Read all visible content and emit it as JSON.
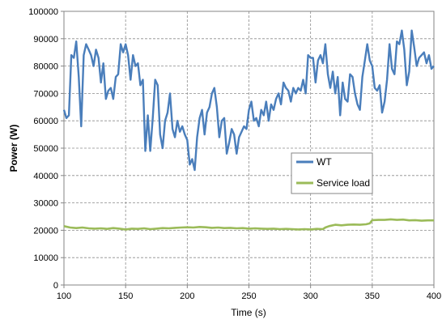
{
  "chart_data": {
    "type": "line",
    "title": "",
    "xlabel": "Time (s)",
    "ylabel": "Power (W)",
    "xlim": [
      100,
      400
    ],
    "ylim": [
      0,
      100000
    ],
    "x_ticks": [
      100,
      150,
      200,
      250,
      300,
      350,
      400
    ],
    "y_ticks": [
      0,
      10000,
      20000,
      30000,
      40000,
      50000,
      60000,
      70000,
      80000,
      90000,
      100000
    ],
    "grid": true,
    "grid_style": "dashed",
    "legend_position": "center-right",
    "series": [
      {
        "name": "WT",
        "color": "#4a7ebb",
        "x": [
          100,
          102,
          104,
          106,
          108,
          110,
          112,
          114,
          116,
          118,
          120,
          122,
          124,
          126,
          128,
          130,
          132,
          134,
          136,
          138,
          140,
          142,
          144,
          146,
          148,
          150,
          152,
          154,
          156,
          158,
          160,
          162,
          164,
          166,
          168,
          170,
          172,
          174,
          176,
          178,
          180,
          182,
          184,
          186,
          188,
          190,
          192,
          194,
          196,
          198,
          200,
          202,
          204,
          206,
          208,
          210,
          212,
          214,
          216,
          218,
          220,
          222,
          224,
          226,
          228,
          230,
          232,
          234,
          236,
          238,
          240,
          242,
          244,
          246,
          248,
          250,
          252,
          254,
          256,
          258,
          260,
          262,
          264,
          266,
          268,
          270,
          272,
          274,
          276,
          278,
          280,
          282,
          284,
          286,
          288,
          290,
          292,
          294,
          296,
          298,
          300,
          302,
          304,
          306,
          308,
          310,
          312,
          314,
          316,
          318,
          320,
          322,
          324,
          326,
          328,
          330,
          332,
          334,
          336,
          338,
          340,
          342,
          344,
          346,
          348,
          350,
          352,
          354,
          356,
          358,
          360,
          362,
          364,
          366,
          368,
          370,
          372,
          374,
          376,
          378,
          380,
          382,
          384,
          386,
          388,
          390,
          392,
          394,
          396,
          398,
          400
        ],
        "values": [
          64000,
          61000,
          62000,
          84000,
          83000,
          89000,
          76000,
          58000,
          84000,
          88000,
          86000,
          84000,
          80000,
          86000,
          83000,
          74000,
          81000,
          68000,
          71000,
          72000,
          68000,
          76000,
          77000,
          88000,
          85000,
          88000,
          84000,
          75000,
          84000,
          80000,
          81000,
          73000,
          75000,
          49000,
          62000,
          49000,
          61000,
          75000,
          73000,
          55000,
          50000,
          60000,
          63000,
          70000,
          57000,
          54000,
          60000,
          56000,
          58000,
          55000,
          53000,
          44000,
          46000,
          42000,
          54000,
          61000,
          64000,
          55000,
          63000,
          65000,
          70000,
          72000,
          65000,
          54000,
          60000,
          61000,
          48000,
          52000,
          57000,
          55000,
          48000,
          54000,
          56000,
          58000,
          57000,
          64000,
          67000,
          60000,
          61000,
          58000,
          64000,
          62000,
          67000,
          60000,
          66000,
          64000,
          68000,
          70000,
          66000,
          74000,
          72000,
          71000,
          67000,
          72000,
          70000,
          72000,
          71000,
          75000,
          70000,
          84000,
          83000,
          83000,
          74000,
          82000,
          84000,
          81000,
          88000,
          77000,
          72000,
          78000,
          70000,
          76000,
          62000,
          74000,
          68000,
          67000,
          77000,
          76000,
          70000,
          66000,
          64000,
          76000,
          82000,
          88000,
          82000,
          80000,
          72000,
          71000,
          73000,
          63000,
          67000,
          75000,
          88000,
          79000,
          77000,
          89000,
          88000,
          93000,
          86000,
          73000,
          78000,
          93000,
          87000,
          80000,
          83000,
          84000,
          85000,
          81000,
          84000,
          79000,
          80000
        ]
      },
      {
        "name": "Service load",
        "color": "#9bbb59",
        "x": [
          100,
          105,
          110,
          115,
          120,
          125,
          130,
          135,
          140,
          145,
          150,
          155,
          160,
          165,
          170,
          175,
          180,
          185,
          190,
          195,
          200,
          205,
          210,
          215,
          220,
          225,
          230,
          235,
          240,
          245,
          250,
          255,
          260,
          265,
          270,
          275,
          280,
          285,
          290,
          295,
          300,
          305,
          310,
          312,
          315,
          320,
          325,
          330,
          335,
          340,
          345,
          348,
          350,
          355,
          360,
          365,
          370,
          375,
          380,
          385,
          390,
          395,
          400
        ],
        "values": [
          21500,
          21000,
          20800,
          21000,
          20700,
          20600,
          20700,
          20500,
          20800,
          20600,
          20300,
          20600,
          20500,
          20700,
          20400,
          20600,
          20800,
          20700,
          20900,
          21000,
          21100,
          21000,
          21200,
          21100,
          20900,
          21000,
          20800,
          20900,
          20700,
          20800,
          20600,
          20700,
          20600,
          20500,
          20600,
          20400,
          20500,
          20400,
          20300,
          20400,
          20300,
          20500,
          20400,
          21000,
          21500,
          22000,
          21800,
          22000,
          22100,
          22000,
          22200,
          22500,
          23700,
          23800,
          23800,
          24000,
          23800,
          23900,
          23600,
          23700,
          23500,
          23600,
          23600
        ]
      }
    ]
  }
}
